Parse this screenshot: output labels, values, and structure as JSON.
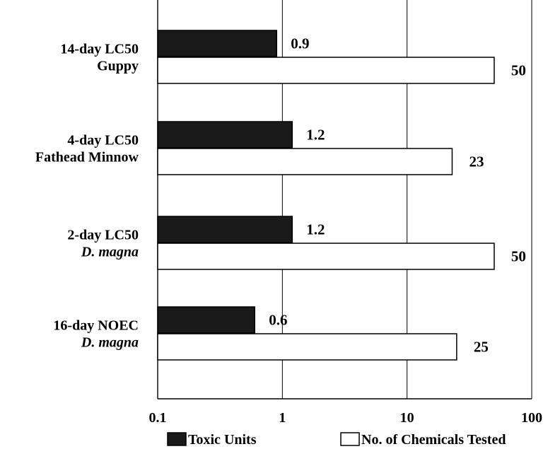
{
  "chart_data": {
    "type": "bar",
    "orientation": "horizontal",
    "x_scale": "log",
    "xlim": [
      0.1,
      100
    ],
    "x_ticks": [
      "0.1",
      "1",
      "10",
      "100"
    ],
    "grid": "vertical lines at decades",
    "legend_position": "bottom",
    "categories": [
      {
        "line1": "14-day LC50",
        "line2": "Guppy",
        "line2_italic": false
      },
      {
        "line1": "4-day LC50",
        "line2": "Fathead Minnow",
        "line2_italic": false
      },
      {
        "line1": "2-day LC50",
        "line2": "D. magna",
        "line2_italic": true
      },
      {
        "line1": "16-day NOEC",
        "line2": "D. magna",
        "line2_italic": true
      }
    ],
    "series": [
      {
        "name": "Toxic Units",
        "color": "#1a1a1a",
        "values": [
          0.9,
          1.2,
          1.2,
          0.6
        ],
        "labels": [
          "0.9",
          "1.2",
          "1.2",
          "0.6"
        ]
      },
      {
        "name": "No. of Chemicals Tested",
        "color": "#ffffff",
        "values": [
          50,
          23,
          50,
          25
        ],
        "labels": [
          "50",
          "23",
          "50",
          "25"
        ]
      }
    ]
  }
}
